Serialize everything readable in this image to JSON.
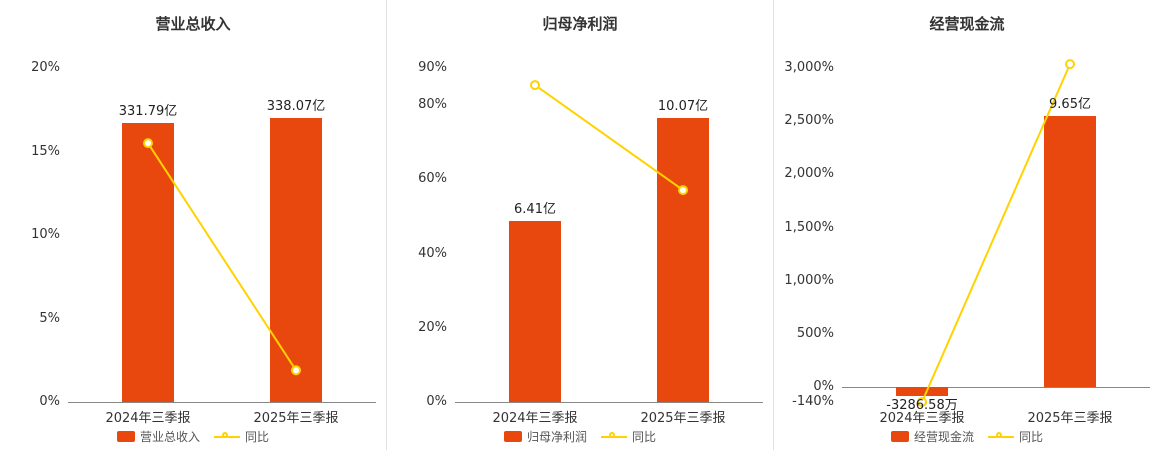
{
  "colors": {
    "bar": "#e8470e",
    "line": "#ffd200",
    "marker_fill": "#ffffff",
    "text": "#333333",
    "label": "#222222",
    "legend_text": "#555555",
    "axis": "#888888",
    "divider": "#e0e0e0",
    "background": "#ffffff"
  },
  "chart_data": [
    {
      "type": "bar+line",
      "title": "营业总收入",
      "categories": [
        "2024年三季报",
        "2025年三季报"
      ],
      "series": [
        {
          "name": "营业总收入",
          "type": "bar",
          "unit": "亿",
          "values": [
            331.79,
            338.07
          ],
          "value_labels": [
            "331.79亿",
            "338.07亿"
          ]
        },
        {
          "name": "同比",
          "type": "line",
          "unit": "%",
          "values": [
            15.5,
            1.9
          ]
        }
      ],
      "yaxis": {
        "min": 0,
        "max": 20,
        "tick_values": [
          0,
          5,
          10,
          15,
          20
        ],
        "tick_labels": [
          "0%",
          "5%",
          "10%",
          "15%",
          "20%"
        ]
      },
      "legend": [
        "营业总收入",
        "同比"
      ],
      "legend_position": "bottom",
      "grid": false
    },
    {
      "type": "bar+line",
      "title": "归母净利润",
      "categories": [
        "2024年三季报",
        "2025年三季报"
      ],
      "series": [
        {
          "name": "归母净利润",
          "type": "bar",
          "unit": "亿",
          "values": [
            6.41,
            10.07
          ],
          "value_labels": [
            "6.41亿",
            "10.07亿"
          ]
        },
        {
          "name": "同比",
          "type": "line",
          "unit": "%",
          "values": [
            85.4,
            57.1
          ]
        }
      ],
      "yaxis": {
        "min": 0,
        "max": 90,
        "tick_values": [
          0,
          20,
          40,
          60,
          80,
          90
        ],
        "tick_labels": [
          "0%",
          "20%",
          "40%",
          "60%",
          "80%",
          "90%"
        ]
      },
      "legend": [
        "归母净利润",
        "同比"
      ],
      "legend_position": "bottom",
      "grid": false
    },
    {
      "type": "bar+line",
      "title": "经营现金流",
      "categories": [
        "2024年三季报",
        "2025年三季报"
      ],
      "series": [
        {
          "name": "经营现金流",
          "type": "bar",
          "unit": "亿",
          "values": [
            -0.328658,
            9.65
          ],
          "value_labels": [
            "-3286.58万",
            "9.65亿"
          ]
        },
        {
          "name": "同比",
          "type": "line",
          "unit": "%",
          "values": [
            -140,
            3036.4
          ]
        }
      ],
      "yaxis": {
        "min": -140,
        "max": 3000,
        "tick_values": [
          -140,
          0,
          500,
          1000,
          1500,
          2000,
          2500,
          3000
        ],
        "tick_labels": [
          "-140%",
          "0%",
          "500%",
          "1,000%",
          "1,500%",
          "2,000%",
          "2,500%",
          "3,000%"
        ]
      },
      "legend": [
        "经营现金流",
        "同比"
      ],
      "legend_position": "bottom",
      "grid": false
    }
  ]
}
